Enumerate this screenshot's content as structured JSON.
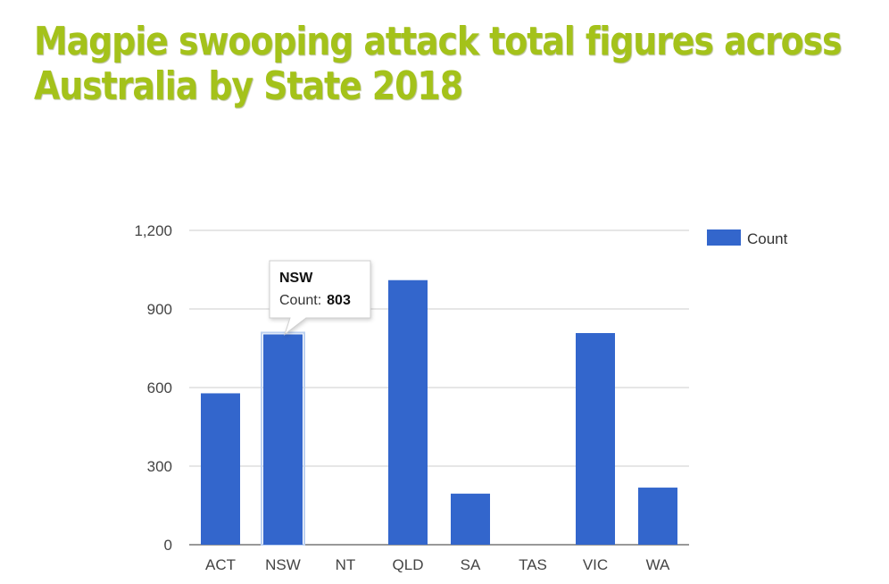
{
  "slide": {
    "title_line1": "Magpie swooping attack total figures across",
    "title_line2": "Australia by State 2018",
    "title_color": "#a4c21a"
  },
  "chart_data": {
    "type": "bar",
    "categories": [
      "ACT",
      "NSW",
      "NT",
      "QLD",
      "SA",
      "TAS",
      "VIC",
      "WA"
    ],
    "series": [
      {
        "name": "Count",
        "values": [
          578,
          803,
          0,
          1010,
          195,
          0,
          808,
          218
        ],
        "color": "#3366cc"
      }
    ],
    "title": "",
    "xlabel": "",
    "ylabel": "",
    "ylim": [
      0,
      1200
    ],
    "yticks": [
      0,
      300,
      600,
      900,
      1200
    ],
    "ytick_labels": [
      "0",
      "300",
      "600",
      "900",
      "1,200"
    ],
    "grid": true,
    "legend": {
      "position": "top-right",
      "label": "Count"
    },
    "tooltip": {
      "category": "NSW",
      "label": "Count:",
      "value": "803"
    },
    "highlighted_category": "NSW"
  }
}
